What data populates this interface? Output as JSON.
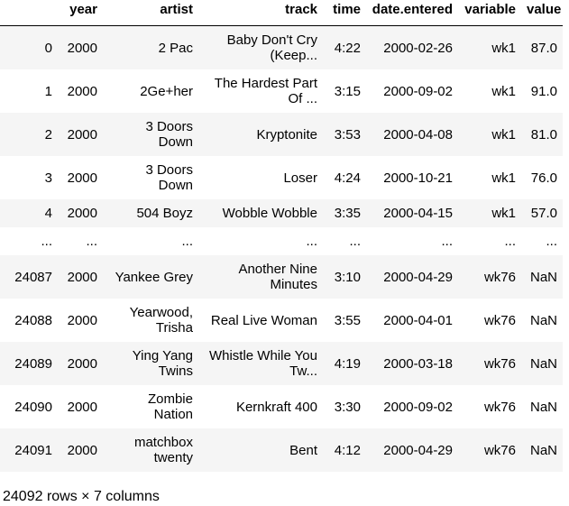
{
  "table": {
    "columns": [
      "",
      "year",
      "artist",
      "track",
      "time",
      "date.entered",
      "variable",
      "value"
    ],
    "rows": [
      {
        "index": "0",
        "year": "2000",
        "artist": "2 Pac",
        "track": "Baby Don't Cry (Keep...",
        "time": "4:22",
        "date_entered": "2000-02-26",
        "variable": "wk1",
        "value": "87.0"
      },
      {
        "index": "1",
        "year": "2000",
        "artist": "2Ge+her",
        "track": "The Hardest Part Of ...",
        "time": "3:15",
        "date_entered": "2000-09-02",
        "variable": "wk1",
        "value": "91.0"
      },
      {
        "index": "2",
        "year": "2000",
        "artist": "3 Doors Down",
        "track": "Kryptonite",
        "time": "3:53",
        "date_entered": "2000-04-08",
        "variable": "wk1",
        "value": "81.0"
      },
      {
        "index": "3",
        "year": "2000",
        "artist": "3 Doors Down",
        "track": "Loser",
        "time": "4:24",
        "date_entered": "2000-10-21",
        "variable": "wk1",
        "value": "76.0"
      },
      {
        "index": "4",
        "year": "2000",
        "artist": "504 Boyz",
        "track": "Wobble Wobble",
        "time": "3:35",
        "date_entered": "2000-04-15",
        "variable": "wk1",
        "value": "57.0"
      },
      {
        "index": "...",
        "year": "...",
        "artist": "...",
        "track": "...",
        "time": "...",
        "date_entered": "...",
        "variable": "...",
        "value": "..."
      },
      {
        "index": "24087",
        "year": "2000",
        "artist": "Yankee Grey",
        "track": "Another Nine Minutes",
        "time": "3:10",
        "date_entered": "2000-04-29",
        "variable": "wk76",
        "value": "NaN"
      },
      {
        "index": "24088",
        "year": "2000",
        "artist": "Yearwood, Trisha",
        "track": "Real Live Woman",
        "time": "3:55",
        "date_entered": "2000-04-01",
        "variable": "wk76",
        "value": "NaN"
      },
      {
        "index": "24089",
        "year": "2000",
        "artist": "Ying Yang Twins",
        "track": "Whistle While You Tw...",
        "time": "4:19",
        "date_entered": "2000-03-18",
        "variable": "wk76",
        "value": "NaN"
      },
      {
        "index": "24090",
        "year": "2000",
        "artist": "Zombie Nation",
        "track": "Kernkraft 400",
        "time": "3:30",
        "date_entered": "2000-09-02",
        "variable": "wk76",
        "value": "NaN"
      },
      {
        "index": "24091",
        "year": "2000",
        "artist": "matchbox twenty",
        "track": "Bent",
        "time": "4:12",
        "date_entered": "2000-04-29",
        "variable": "wk76",
        "value": "NaN"
      }
    ]
  },
  "footer": {
    "shape_text": "24092 rows × 7 columns"
  }
}
